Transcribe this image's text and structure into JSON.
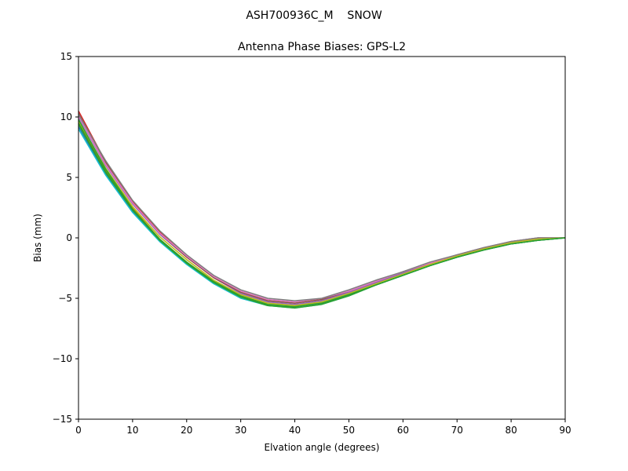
{
  "chart_data": {
    "type": "line",
    "suptitle": "ASH700936C_M    SNOW",
    "title": "Antenna Phase Biases: GPS-L2",
    "xlabel": "Elvation angle (degrees)",
    "ylabel": "Bias (mm)",
    "xlim": [
      0,
      90
    ],
    "ylim": [
      -15,
      15
    ],
    "xticks": [
      0,
      10,
      20,
      30,
      40,
      50,
      60,
      70,
      80,
      90
    ],
    "yticks": [
      -15,
      -10,
      -5,
      0,
      5,
      10,
      15
    ],
    "ytick_labels": [
      "−15",
      "−10",
      "−5",
      "0",
      "5",
      "10",
      "15"
    ],
    "grid": false,
    "legend": "none",
    "x": [
      0,
      5,
      10,
      15,
      20,
      25,
      30,
      35,
      40,
      45,
      50,
      55,
      60,
      65,
      70,
      75,
      80,
      85,
      90
    ],
    "series": [
      {
        "color": "#1f77b4",
        "values": [
          9.2,
          5.3,
          2.2,
          -0.2,
          -2.1,
          -3.7,
          -4.9,
          -5.6,
          -5.7,
          -5.4,
          -4.7,
          -3.9,
          -3.1,
          -2.3,
          -1.6,
          -1.0,
          -0.5,
          -0.2,
          0.0
        ]
      },
      {
        "color": "#ff7f0e",
        "values": [
          9.6,
          5.6,
          2.5,
          0.1,
          -1.8,
          -3.5,
          -4.7,
          -5.4,
          -5.6,
          -5.3,
          -4.6,
          -3.8,
          -3.0,
          -2.2,
          -1.5,
          -0.9,
          -0.4,
          -0.1,
          0.0
        ]
      },
      {
        "color": "#2ca02c",
        "values": [
          9.4,
          5.4,
          2.3,
          -0.1,
          -2.0,
          -3.6,
          -4.8,
          -5.5,
          -5.6,
          -5.3,
          -4.6,
          -3.8,
          -3.0,
          -2.2,
          -1.5,
          -0.9,
          -0.4,
          -0.1,
          0.0
        ]
      },
      {
        "color": "#d62728",
        "values": [
          10.5,
          6.3,
          3.0,
          0.5,
          -1.5,
          -3.2,
          -4.5,
          -5.2,
          -5.4,
          -5.1,
          -4.5,
          -3.7,
          -2.9,
          -2.2,
          -1.5,
          -0.9,
          -0.4,
          -0.1,
          0.0
        ]
      },
      {
        "color": "#9467bd",
        "values": [
          10.0,
          6.0,
          2.8,
          0.3,
          -1.6,
          -3.3,
          -4.6,
          -5.3,
          -5.5,
          -5.2,
          -4.5,
          -3.7,
          -2.9,
          -2.1,
          -1.5,
          -0.9,
          -0.4,
          -0.1,
          0.0
        ]
      },
      {
        "color": "#8c564b",
        "values": [
          10.3,
          6.2,
          2.9,
          0.4,
          -1.6,
          -3.3,
          -4.5,
          -5.2,
          -5.4,
          -5.1,
          -4.4,
          -3.6,
          -2.8,
          -2.1,
          -1.4,
          -0.8,
          -0.3,
          0.0,
          0.0
        ]
      },
      {
        "color": "#e377c2",
        "values": [
          10.1,
          6.1,
          2.9,
          0.4,
          -1.5,
          -3.2,
          -4.4,
          -5.1,
          -5.3,
          -5.0,
          -4.4,
          -3.6,
          -2.8,
          -2.1,
          -1.4,
          -0.8,
          -0.3,
          0.0,
          0.0
        ]
      },
      {
        "color": "#7f7f7f",
        "values": [
          10.2,
          6.4,
          3.1,
          0.6,
          -1.4,
          -3.1,
          -4.3,
          -5.0,
          -5.2,
          -5.0,
          -4.3,
          -3.5,
          -2.8,
          -2.0,
          -1.4,
          -0.8,
          -0.3,
          0.0,
          0.0
        ]
      },
      {
        "color": "#bcbd22",
        "values": [
          9.7,
          5.8,
          2.6,
          0.1,
          -1.8,
          -3.5,
          -4.7,
          -5.4,
          -5.6,
          -5.3,
          -4.6,
          -3.8,
          -3.0,
          -2.2,
          -1.5,
          -0.9,
          -0.4,
          -0.1,
          0.0
        ]
      },
      {
        "color": "#17becf",
        "values": [
          9.0,
          5.2,
          2.1,
          -0.3,
          -2.2,
          -3.8,
          -5.0,
          -5.6,
          -5.8,
          -5.5,
          -4.8,
          -3.9,
          -3.1,
          -2.3,
          -1.6,
          -1.0,
          -0.5,
          -0.2,
          0.0
        ]
      },
      {
        "color": "#2ca02c",
        "values": [
          9.5,
          5.5,
          2.3,
          -0.2,
          -2.1,
          -3.7,
          -4.9,
          -5.6,
          -5.7,
          -5.4,
          -4.7,
          -3.9,
          -3.1,
          -2.3,
          -1.6,
          -1.0,
          -0.5,
          -0.2,
          0.0
        ]
      },
      {
        "color": "#2ca02c",
        "values": [
          9.8,
          5.7,
          2.4,
          -0.1,
          -2.0,
          -3.7,
          -4.9,
          -5.6,
          -5.8,
          -5.5,
          -4.8,
          -3.9,
          -3.1,
          -2.3,
          -1.6,
          -1.0,
          -0.5,
          -0.2,
          0.0
        ]
      }
    ]
  }
}
